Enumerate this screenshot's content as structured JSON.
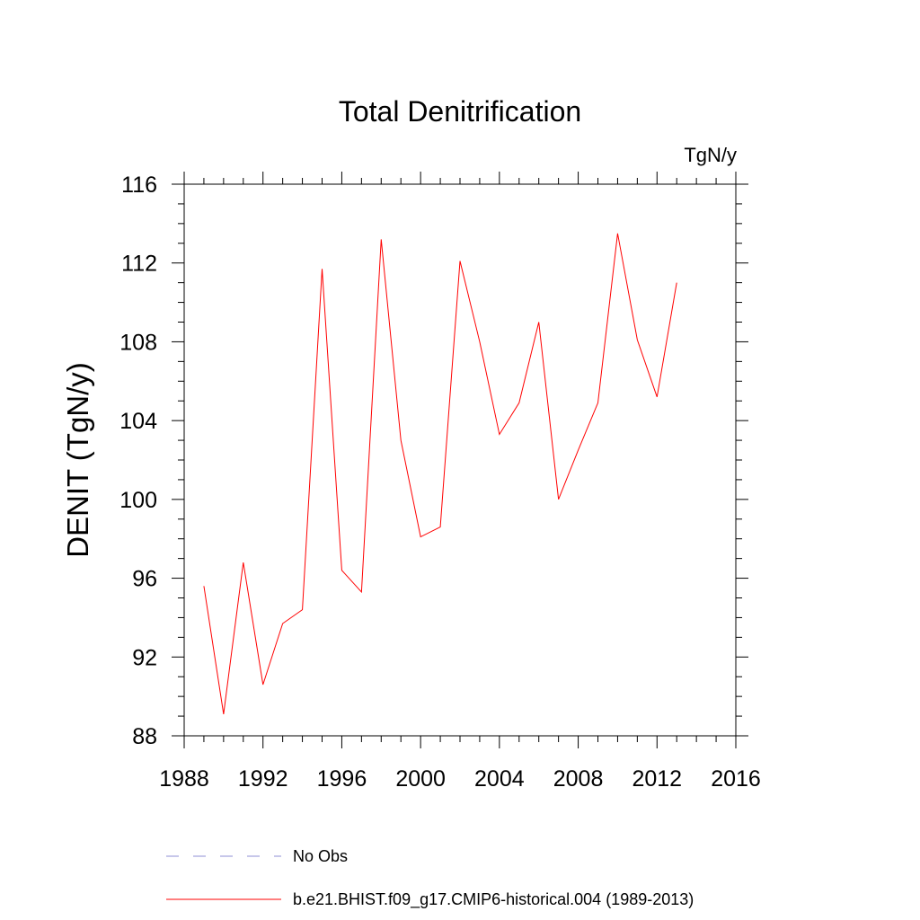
{
  "chart_data": {
    "type": "line",
    "title": "Total Denitrification",
    "units": "TgN/y",
    "xlabel": "",
    "ylabel": "DENIT  (TgN/y)",
    "xlim": [
      1988,
      2016
    ],
    "ylim": [
      88,
      116
    ],
    "xticks": [
      1988,
      1992,
      1996,
      2000,
      2004,
      2008,
      2012,
      2016
    ],
    "yticks": [
      88,
      92,
      96,
      100,
      104,
      108,
      112,
      116
    ],
    "legend": {
      "placement": "bottom",
      "entries": [
        {
          "label": "No Obs",
          "style": "dashed",
          "color": "#8f8fd6"
        },
        {
          "label": "b.e21.BHIST.f09_g17.CMIP6-historical.004 (1989-2013)",
          "style": "solid",
          "color": "#ff0000"
        }
      ]
    },
    "series": [
      {
        "name": "b.e21.BHIST.f09_g17.CMIP6-historical.004 (1989-2013)",
        "color": "#ff0000",
        "x": [
          1989,
          1990,
          1991,
          1992,
          1993,
          1994,
          1995,
          1996,
          1997,
          1998,
          1999,
          2000,
          2001,
          2002,
          2003,
          2004,
          2005,
          2006,
          2007,
          2008,
          2009,
          2010,
          2011,
          2012,
          2013
        ],
        "values": [
          95.6,
          89.1,
          96.8,
          90.6,
          93.7,
          94.4,
          111.7,
          96.4,
          95.3,
          113.2,
          103.0,
          98.1,
          98.6,
          112.1,
          108.0,
          103.3,
          104.9,
          109.0,
          100.0,
          102.5,
          104.9,
          113.5,
          108.1,
          105.2,
          111.0
        ]
      }
    ]
  }
}
